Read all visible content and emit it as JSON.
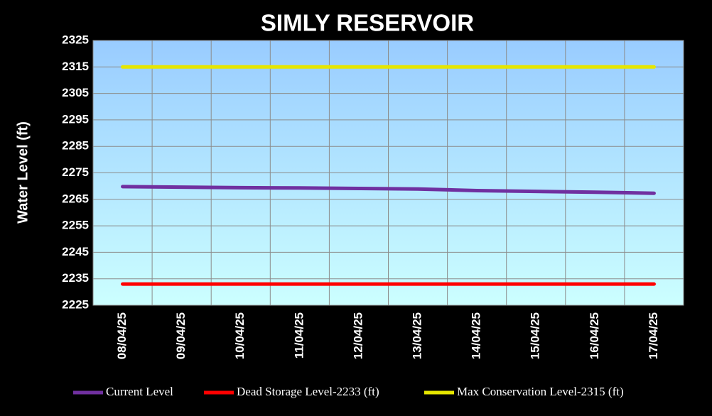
{
  "chart_data": {
    "type": "line",
    "title": "SIMLY RESERVOIR",
    "y_label": "Water Level (ft)",
    "categories": [
      "08/04/25",
      "09/04/25",
      "10/04/25",
      "11/04/25",
      "12/04/25",
      "13/04/25",
      "14/04/25",
      "15/04/25",
      "16/04/25",
      "17/04/25"
    ],
    "series": [
      {
        "name": "Current Level",
        "color": "#7030a0",
        "values": [
          2269.8,
          2269.6,
          2269.4,
          2269.3,
          2269.1,
          2268.9,
          2268.3,
          2268.0,
          2267.7,
          2267.3
        ]
      },
      {
        "name": "Dead Storage Level-2233 (ft)",
        "color": "#ff0000",
        "values": [
          2233,
          2233,
          2233,
          2233,
          2233,
          2233,
          2233,
          2233,
          2233,
          2233
        ]
      },
      {
        "name": "Max Conservation Level-2315 (ft)",
        "color": "#e6e600",
        "values": [
          2315,
          2315,
          2315,
          2315,
          2315,
          2315,
          2315,
          2315,
          2315,
          2315
        ]
      }
    ],
    "ylim": [
      2225,
      2325
    ],
    "yticks": [
      2225,
      2235,
      2245,
      2255,
      2265,
      2275,
      2285,
      2295,
      2305,
      2315,
      2325
    ],
    "grid": true,
    "legend": "bottom"
  }
}
